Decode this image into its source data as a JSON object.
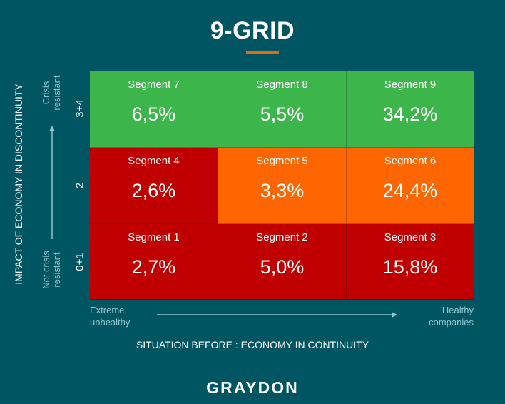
{
  "title": "9-GRID",
  "logo": "GRAYDON",
  "chart_data": {
    "type": "heatmap",
    "title": "9-GRID",
    "xlabel": "SITUATION BEFORE : ECONOMY IN CONTINUITY",
    "ylabel": "IMPACT OF ECONOMY IN DISCONTINUITY",
    "x_low_label": "Extreme unhealthy",
    "x_high_label": "Healthy companies",
    "y_low_label": "Not crisis resistant",
    "y_high_label": "Crisis resistant",
    "y_ticks": [
      "3+4",
      "2",
      "0+1"
    ],
    "colors": {
      "green": "#3cb54a",
      "orange": "#ff6600",
      "red": "#c00000"
    },
    "rows": [
      {
        "tick": "3+4",
        "cells": [
          {
            "segment": "Segment 7",
            "value_label": "6,5%",
            "value": 6.5,
            "color": "#3cb54a"
          },
          {
            "segment": "Segment 8",
            "value_label": "5,5%",
            "value": 5.5,
            "color": "#3cb54a"
          },
          {
            "segment": "Segment 9",
            "value_label": "34,2%",
            "value": 34.2,
            "color": "#3cb54a"
          }
        ]
      },
      {
        "tick": "2",
        "cells": [
          {
            "segment": "Segment 4",
            "value_label": "2,6%",
            "value": 2.6,
            "color": "#c00000"
          },
          {
            "segment": "Segment 5",
            "value_label": "3,3%",
            "value": 3.3,
            "color": "#ff6600"
          },
          {
            "segment": "Segment 6",
            "value_label": "24,4%",
            "value": 24.4,
            "color": "#ff6600"
          }
        ]
      },
      {
        "tick": "0+1",
        "cells": [
          {
            "segment": "Segment 1",
            "value_label": "2,7%",
            "value": 2.7,
            "color": "#c00000"
          },
          {
            "segment": "Segment 2",
            "value_label": "5,0%",
            "value": 5.0,
            "color": "#c00000"
          },
          {
            "segment": "Segment 3",
            "value_label": "15,8%",
            "value": 15.8,
            "color": "#c00000"
          }
        ]
      }
    ]
  }
}
